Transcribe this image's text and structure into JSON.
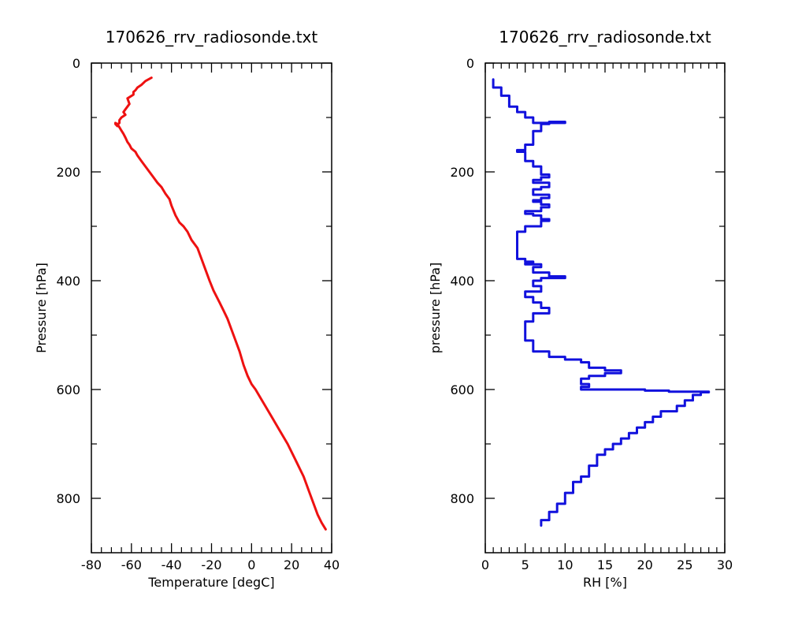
{
  "chart_data": [
    {
      "type": "line",
      "title": "170626_rrv_radiosonde.txt",
      "xlabel": "Temperature [degC]",
      "ylabel": "Pressure [hPa]",
      "xlim": [
        -80,
        40
      ],
      "ylim": [
        900,
        0
      ],
      "y_inverted": true,
      "x_ticks": [
        "-80",
        "-60",
        "-40",
        "-20",
        "0",
        "20",
        "40"
      ],
      "y_ticks": [
        "0",
        "200",
        "400",
        "600",
        "800"
      ],
      "grid": false,
      "color": "#ee1111",
      "series": [
        {
          "x": [
            -50,
            -53,
            -55,
            -57,
            -58,
            -59,
            -59,
            -62,
            -61,
            -63,
            -64,
            -63,
            -65,
            -66,
            -66,
            -67,
            -67,
            -68,
            -68,
            -67,
            -66,
            -65,
            -64,
            -63,
            -62,
            -61,
            -60,
            -58,
            -57,
            -55,
            -53,
            -51,
            -49,
            -47,
            -45,
            -43,
            -41,
            -40,
            -38,
            -36,
            -34,
            -32,
            -30,
            -27,
            -25,
            -23,
            -21,
            -19,
            -16,
            -14,
            -12,
            -10,
            -8,
            -6,
            -4,
            -2,
            0,
            2,
            6,
            10,
            14,
            18,
            22,
            26,
            29,
            31,
            33,
            35,
            37
          ],
          "y": [
            27,
            33,
            40,
            45,
            50,
            53,
            58,
            65,
            75,
            85,
            90,
            95,
            100,
            105,
            110,
            113,
            116,
            112,
            110,
            112,
            118,
            124,
            130,
            137,
            145,
            150,
            157,
            163,
            170,
            180,
            190,
            200,
            210,
            220,
            228,
            240,
            250,
            262,
            280,
            293,
            300,
            310,
            325,
            340,
            360,
            380,
            400,
            418,
            440,
            455,
            470,
            490,
            510,
            530,
            555,
            575,
            590,
            600,
            625,
            650,
            675,
            700,
            730,
            760,
            790,
            810,
            830,
            845,
            857
          ]
        }
      ]
    },
    {
      "type": "line",
      "title": "170626_rrv_radiosonde.txt",
      "xlabel": "RH [%]",
      "ylabel": "pressure [hPa]",
      "xlim": [
        0,
        30
      ],
      "ylim": [
        900,
        0
      ],
      "y_inverted": true,
      "x_ticks": [
        "0",
        "5",
        "10",
        "15",
        "20",
        "25",
        "30"
      ],
      "y_ticks": [
        "0",
        "200",
        "400",
        "600",
        "800"
      ],
      "grid": false,
      "color": "#1111dd",
      "series": [
        {
          "x": [
            1,
            1,
            2,
            2,
            3,
            3,
            4,
            5,
            5,
            6,
            6,
            6,
            7,
            8,
            10,
            7,
            6,
            6,
            5,
            5,
            4,
            5,
            5,
            6,
            7,
            7,
            8,
            7,
            6,
            8,
            7,
            6,
            6,
            8,
            7,
            6,
            7,
            8,
            7,
            5,
            6,
            7,
            8,
            7,
            5,
            4,
            4,
            5,
            6,
            5,
            7,
            6,
            8,
            10,
            7,
            6,
            7,
            5,
            6,
            7,
            8,
            6,
            5,
            5,
            6,
            8,
            10,
            12,
            13,
            15,
            17,
            15,
            13,
            12,
            13,
            12,
            15,
            20,
            23,
            28,
            27,
            26,
            25,
            24,
            22,
            21,
            20,
            19,
            18,
            17,
            16,
            15,
            14,
            13,
            12,
            11,
            10,
            9,
            8,
            7
          ],
          "y": [
            30,
            45,
            50,
            60,
            70,
            80,
            90,
            95,
            100,
            103,
            107,
            110,
            112,
            108,
            110,
            125,
            140,
            150,
            155,
            160,
            163,
            168,
            180,
            190,
            200,
            205,
            210,
            215,
            220,
            228,
            232,
            235,
            242,
            248,
            252,
            255,
            260,
            265,
            272,
            277,
            280,
            287,
            290,
            300,
            310,
            340,
            360,
            365,
            368,
            370,
            375,
            385,
            392,
            395,
            400,
            410,
            420,
            430,
            440,
            450,
            460,
            475,
            490,
            510,
            530,
            540,
            545,
            550,
            560,
            565,
            570,
            575,
            580,
            590,
            595,
            600,
            600,
            602,
            604,
            605,
            610,
            620,
            630,
            640,
            650,
            660,
            670,
            680,
            690,
            700,
            710,
            720,
            740,
            760,
            770,
            790,
            810,
            825,
            840,
            850
          ]
        }
      ]
    }
  ]
}
